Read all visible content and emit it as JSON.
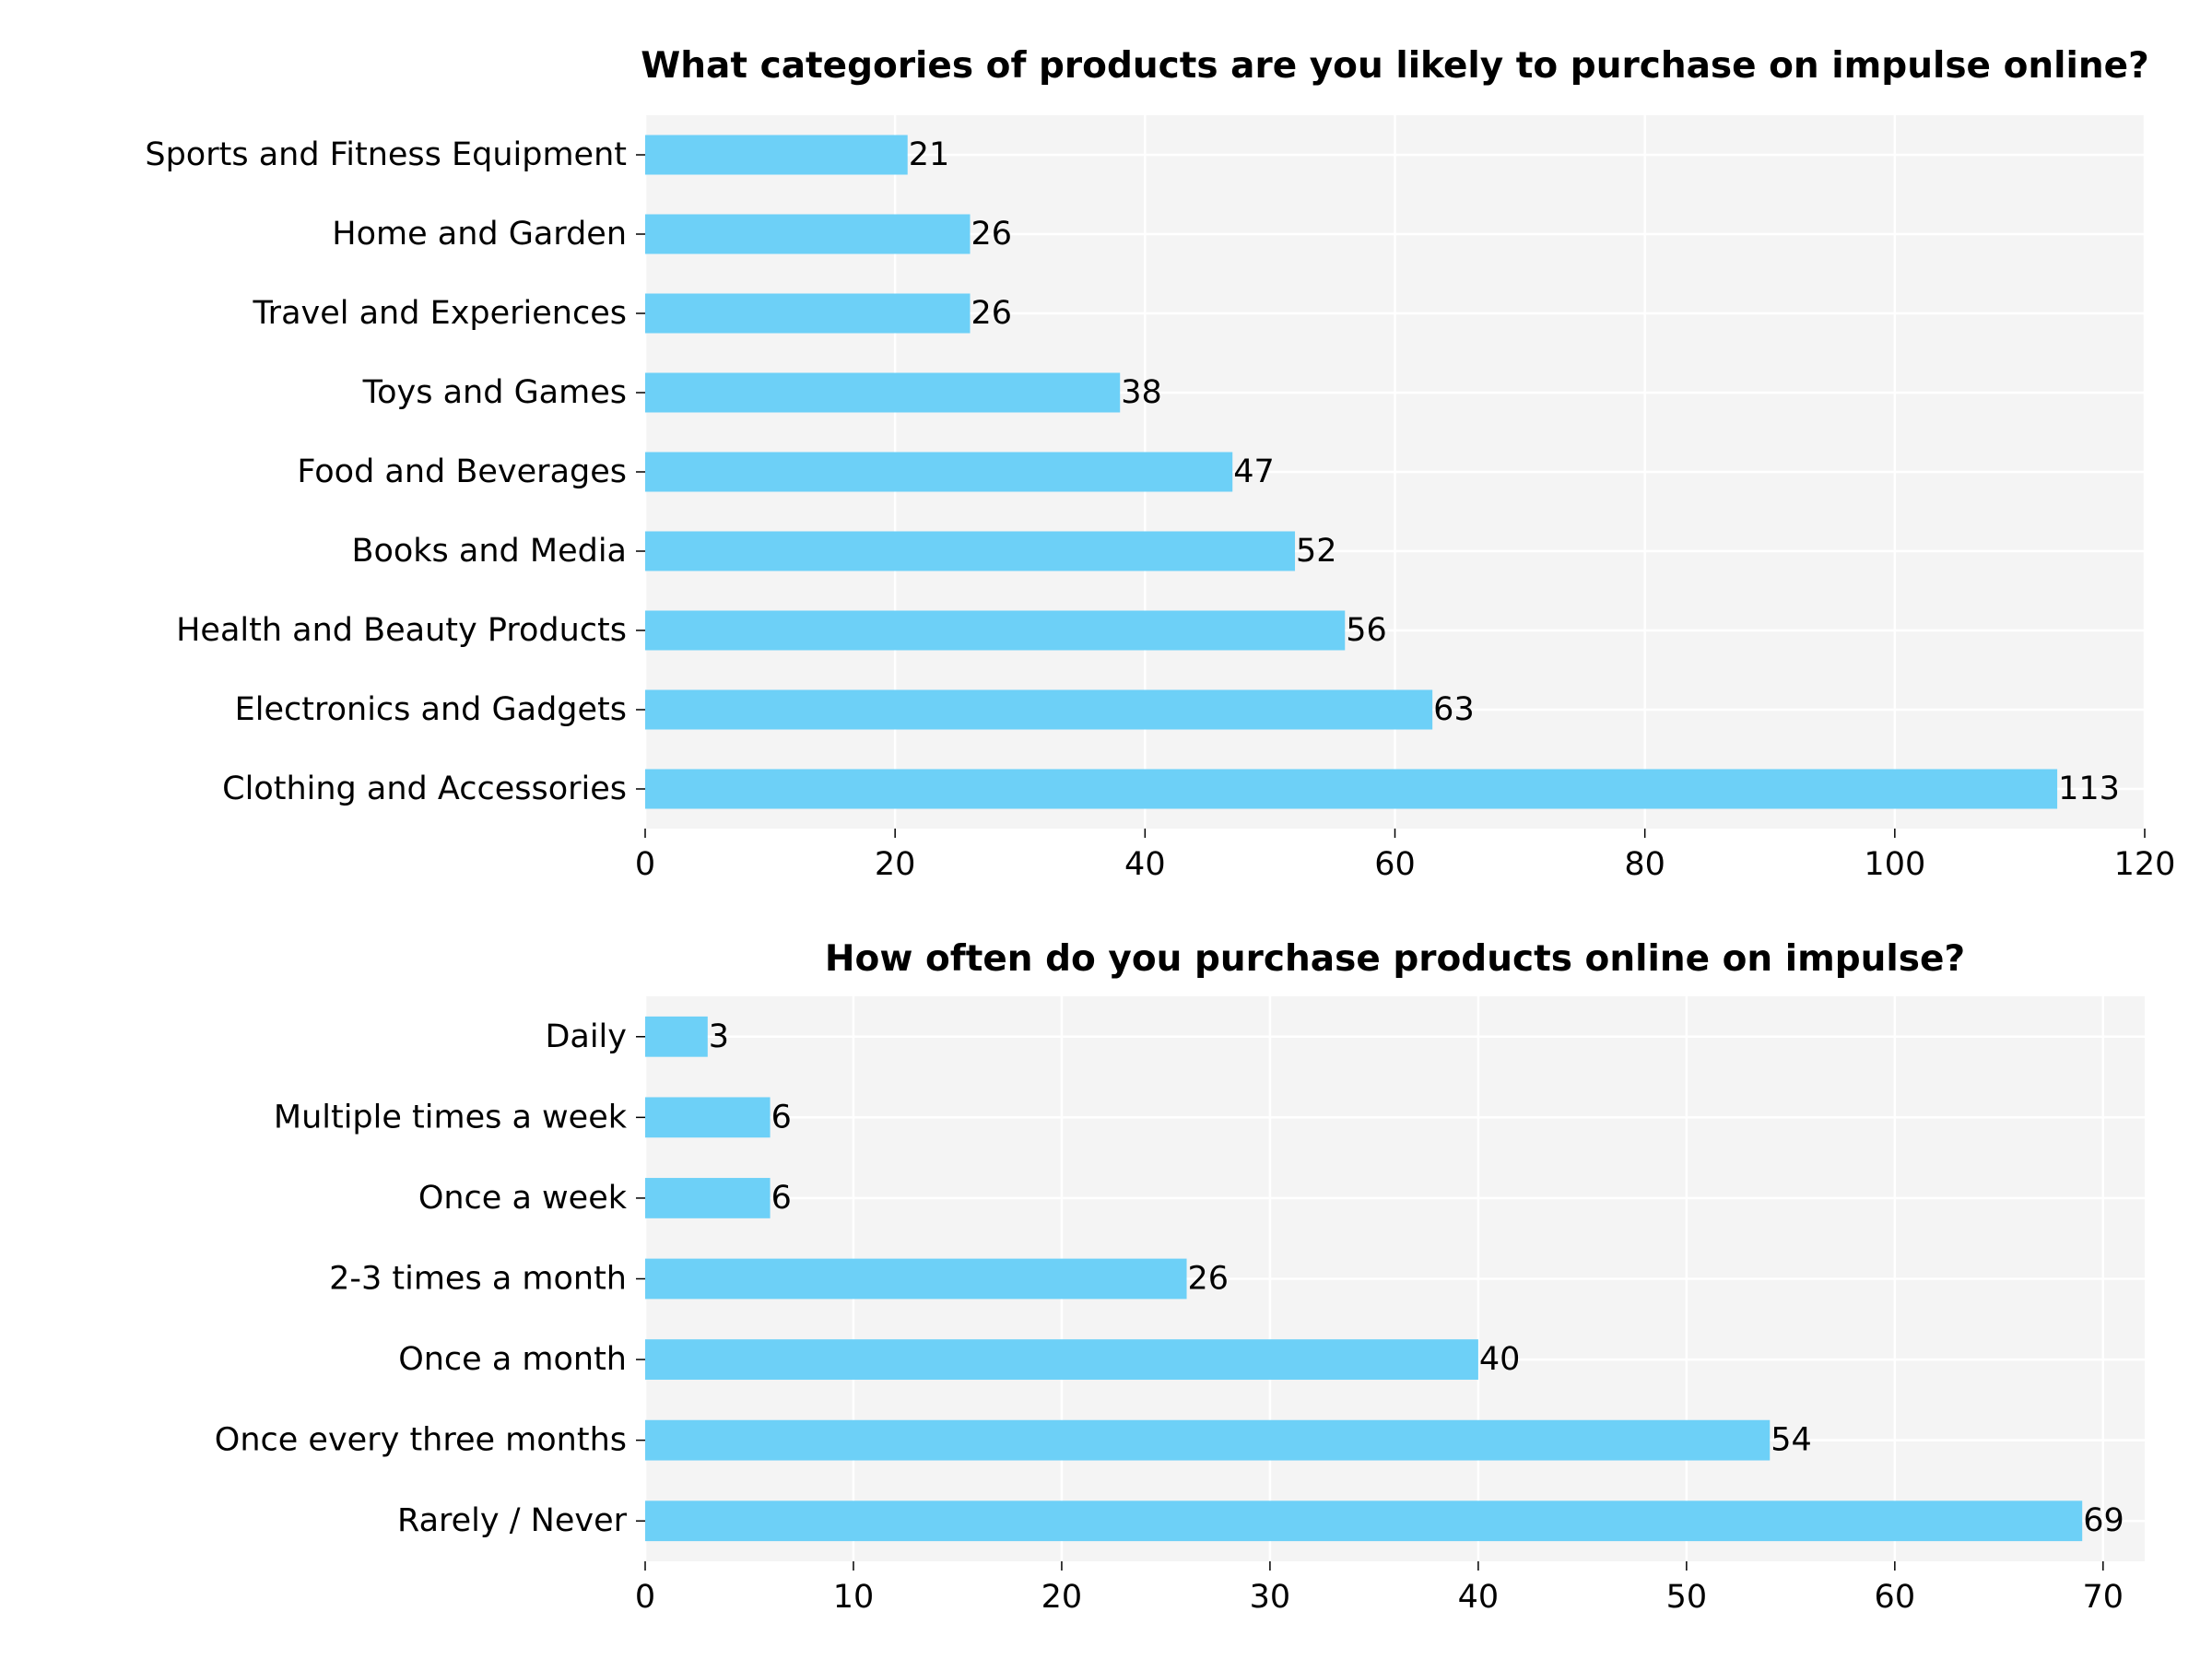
{
  "chart_data": [
    {
      "type": "bar",
      "orientation": "horizontal",
      "title": "What categories of products are you likely to purchase on impulse online?",
      "xlabel": "",
      "ylabel": "",
      "categories": [
        "Sports and Fitness Equipment",
        "Home and Garden",
        "Travel and Experiences",
        "Toys and Games",
        "Food and Beverages",
        "Books and Media",
        "Health and Beauty Products",
        "Electronics and Gadgets",
        "Clothing and Accessories"
      ],
      "values": [
        21,
        26,
        26,
        38,
        47,
        52,
        56,
        63,
        113
      ],
      "xlim": [
        0,
        120
      ],
      "xticks": [
        0,
        20,
        40,
        60,
        80,
        100,
        120
      ],
      "grid": true,
      "bar_color": "#6dd0f7",
      "background_color": "#f4f4f4"
    },
    {
      "type": "bar",
      "orientation": "horizontal",
      "title": "How often do you purchase products online on impulse?",
      "xlabel": "",
      "ylabel": "",
      "categories": [
        "Daily",
        "Multiple times a week",
        "Once a week",
        "2-3 times a month",
        "Once a month",
        "Once every three months",
        "Rarely / Never"
      ],
      "values": [
        3,
        6,
        6,
        26,
        40,
        54,
        69
      ],
      "xlim": [
        0,
        72
      ],
      "xticks": [
        0,
        10,
        20,
        30,
        40,
        50,
        60,
        70
      ],
      "grid": true,
      "bar_color": "#6dd0f7",
      "background_color": "#f4f4f4"
    }
  ]
}
